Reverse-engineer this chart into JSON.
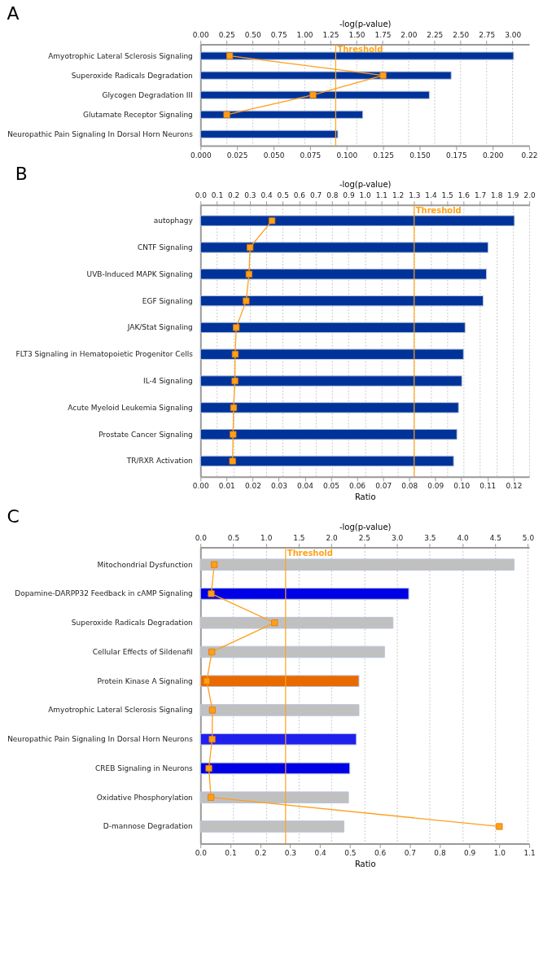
{
  "chart_data": [
    {
      "type": "bar",
      "orientation": "horizontal",
      "title": "A",
      "x2label": "-log(p-value)",
      "categories": [
        "Amyotrophic Lateral Sclerosis Signaling",
        "Superoxide Radicals Degradation",
        "Glycogen Degradation III",
        "Glutamate Receptor Signaling",
        "Neuropathic Pain Signaling In Dorsal Horn Neurons"
      ],
      "series": [
        {
          "type": "bar",
          "axis": "x2",
          "values": [
            3.01,
            2.41,
            2.2,
            1.56,
            1.32
          ],
          "colors": [
            "#003399",
            "#003399",
            "#003399",
            "#003399",
            "#003399"
          ]
        },
        {
          "type": "line",
          "color": "#ff9f1a",
          "marker": "square",
          "values": [
            0.02,
            0.125,
            0.077,
            0.018,
            null
          ]
        }
      ],
      "xlim": [
        0,
        0.225
      ],
      "xticks": [
        {
          "value": 0,
          "label": "0.000"
        },
        {
          "value": 0.025,
          "label": "0.025"
        },
        {
          "value": 0.05,
          "label": "0.050"
        },
        {
          "value": 0.075,
          "label": "0.075"
        },
        {
          "value": 0.1,
          "label": "0.100"
        },
        {
          "value": 0.125,
          "label": "0.125"
        },
        {
          "value": 0.15,
          "label": "0.150"
        },
        {
          "value": 0.175,
          "label": "0.175"
        },
        {
          "value": 0.2,
          "label": "0.200"
        },
        {
          "value": 0.225,
          "label": "0.22"
        }
      ],
      "x2lim": [
        0,
        3.16
      ],
      "x2ticks": [
        {
          "value": 0,
          "label": "0.00"
        },
        0.25,
        {
          "value": 0.5,
          "label": "0.50"
        },
        0.75,
        {
          "value": 1,
          "label": "1.00"
        },
        1.25,
        {
          "value": 1.5,
          "label": "1.50"
        },
        1.75,
        {
          "value": 2,
          "label": "2.00"
        },
        2.25,
        {
          "value": 2.5,
          "label": "2.50"
        },
        2.75,
        {
          "value": 3,
          "label": "3.00"
        }
      ],
      "ref_lines": [
        {
          "axis": "x2",
          "value": 1.3,
          "label": "Threshold",
          "color": "#ffa31a"
        }
      ],
      "grid": "x2",
      "legend": false
    },
    {
      "type": "bar",
      "orientation": "horizontal",
      "title": "B",
      "xlabel": "Ratio",
      "x2label": "-log(p-value)",
      "categories": [
        "autophagy",
        "CNTF Signaling",
        "UVB-Induced MAPK Signaling",
        "EGF Signaling",
        "JAK/Stat Signaling",
        "FLT3 Signaling in Hematopoietic Progenitor Cells",
        "IL-4 Signaling",
        "Acute Myeloid Leukemia Signaling",
        "Prostate Cancer Signaling",
        "TR/RXR Activation"
      ],
      "series": [
        {
          "type": "bar",
          "axis": "x2",
          "values": [
            1.91,
            1.75,
            1.74,
            1.72,
            1.61,
            1.6,
            1.59,
            1.57,
            1.56,
            1.54
          ],
          "colors": [
            "#003399",
            "#003399",
            "#003399",
            "#003399",
            "#003399",
            "#003399",
            "#003399",
            "#003399",
            "#003399",
            "#003399"
          ]
        },
        {
          "type": "line",
          "color": "#ff9f1a",
          "marker": "square",
          "values": [
            0.0274,
            0.019,
            0.0186,
            0.0175,
            0.0137,
            0.0133,
            0.0132,
            0.0127,
            0.0125,
            0.0123
          ]
        }
      ],
      "xlim": [
        0,
        0.126
      ],
      "xticks": [
        {
          "value": 0,
          "label": "0.00"
        },
        0.01,
        0.02,
        0.03,
        0.04,
        0.05,
        0.06,
        0.07,
        0.08,
        0.09,
        {
          "value": 0.1,
          "label": "0.10"
        },
        0.11,
        0.12
      ],
      "x2lim": [
        0,
        2.0
      ],
      "x2ticks": [
        {
          "value": 0,
          "label": "0.0"
        },
        0.1,
        0.2,
        0.3,
        0.4,
        0.5,
        0.6,
        0.7,
        0.8,
        0.9,
        {
          "value": 1,
          "label": "1.0"
        },
        1.1,
        1.2,
        1.3,
        1.4,
        1.5,
        1.6,
        1.7,
        1.8,
        1.9,
        {
          "value": 2,
          "label": "2.0"
        }
      ],
      "ref_lines": [
        {
          "axis": "x2",
          "value": 1.3,
          "label": "Threshold",
          "color": "#ffa31a"
        }
      ],
      "grid": "x2",
      "legend": false
    },
    {
      "type": "bar",
      "orientation": "horizontal",
      "title": "C",
      "xlabel": "Ratio",
      "x2label": "-log(p-value)",
      "categories": [
        "Mitochondrial Dysfunction",
        "Dopamine-DARPP32 Feedback in cAMP Signaling",
        "Superoxide Radicals Degradation",
        "Cellular Effects of Sildenafil",
        "Protein Kinase A Signaling",
        "Amyotrophic Lateral Sclerosis Signaling",
        "Neuropathic Pain Signaling In Dorsal Horn Neurons",
        "CREB Signaling in Neurons",
        "Oxidative Phosphorylation",
        "D-mannose Degradation"
      ],
      "series": [
        {
          "type": "bar",
          "axis": "x2",
          "values": [
            4.79,
            3.18,
            2.94,
            2.81,
            2.42,
            2.42,
            2.38,
            2.28,
            2.26,
            2.19
          ],
          "colors": [
            "#c0c0c0",
            "#0000e6",
            "#c0c0c0",
            "#c0c0c0",
            "#e86a00",
            "#c0c0c0",
            "#2020ee",
            "#0000e6",
            "#c0c0c0",
            "#c0c0c0"
          ]
        },
        {
          "type": "line",
          "color": "#ff9f1a",
          "marker": "square",
          "values": [
            0.046,
            0.036,
            0.248,
            0.038,
            0.021,
            0.04,
            0.039,
            0.028,
            0.035,
            1.0
          ]
        }
      ],
      "xlim": [
        0,
        1.1
      ],
      "xticks": [
        {
          "value": 0,
          "label": "0.0"
        },
        0.1,
        0.2,
        0.3,
        0.4,
        0.5,
        0.6,
        0.7,
        0.8,
        0.9,
        {
          "value": 1,
          "label": "1.0"
        },
        1.1
      ],
      "x2lim": [
        0,
        5.02
      ],
      "x2ticks": [
        {
          "value": 0,
          "label": "0.0"
        },
        0.5,
        {
          "value": 1,
          "label": "1.0"
        },
        1.5,
        {
          "value": 2,
          "label": "2.0"
        },
        2.5,
        {
          "value": 3,
          "label": "3.0"
        },
        3.5,
        {
          "value": 4,
          "label": "4.0"
        },
        4.5,
        {
          "value": 5,
          "label": "5.0"
        }
      ],
      "ref_lines": [
        {
          "axis": "x2",
          "value": 1.3,
          "label": "Threshold",
          "color": "#ffa31a"
        }
      ],
      "grid": "x2",
      "legend": false
    }
  ]
}
